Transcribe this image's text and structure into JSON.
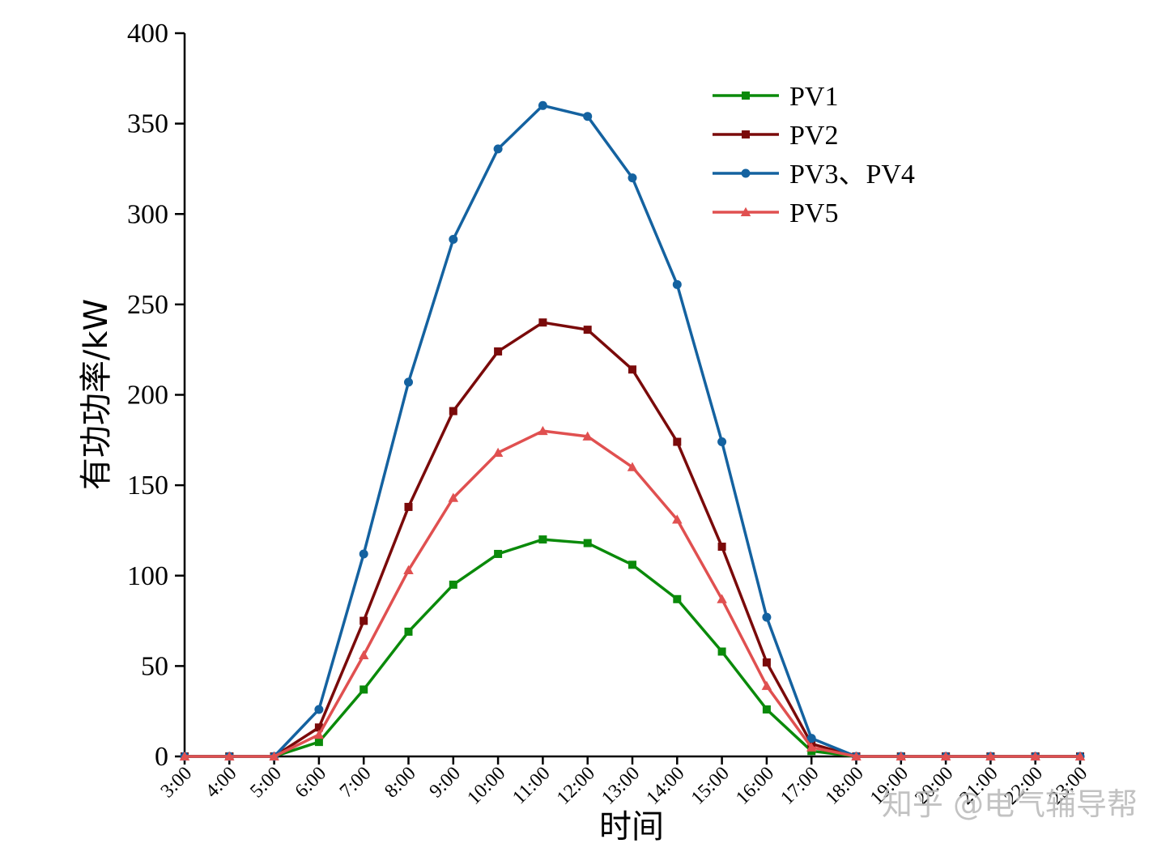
{
  "chart_data": {
    "type": "line",
    "title": "",
    "xlabel": "时间",
    "ylabel": "有功功率/kW",
    "ylim": [
      0,
      400
    ],
    "yticks": [
      0,
      50,
      100,
      150,
      200,
      250,
      300,
      350,
      400
    ],
    "categories": [
      "3:00",
      "4:00",
      "5:00",
      "6:00",
      "7:00",
      "8:00",
      "9:00",
      "10:00",
      "11:00",
      "12:00",
      "13:00",
      "14:00",
      "15:00",
      "16:00",
      "17:00",
      "18:00",
      "19:00",
      "20:00",
      "21:00",
      "22:00",
      "23:00"
    ],
    "grid": false,
    "legend_position": "top-right",
    "series": [
      {
        "name": "PV1",
        "color": "#0a8a0a",
        "marker": "square",
        "values": [
          0,
          0,
          0,
          8,
          37,
          69,
          95,
          112,
          120,
          118,
          106,
          87,
          58,
          26,
          3,
          0,
          0,
          0,
          0,
          0,
          0
        ]
      },
      {
        "name": "PV2",
        "color": "#7a0a0a",
        "marker": "square",
        "values": [
          0,
          0,
          0,
          16,
          75,
          138,
          191,
          224,
          240,
          236,
          214,
          174,
          116,
          52,
          7,
          0,
          0,
          0,
          0,
          0,
          0
        ]
      },
      {
        "name": "PV3、PV4",
        "color": "#1462a0",
        "marker": "circle",
        "values": [
          0,
          0,
          0,
          26,
          112,
          207,
          286,
          336,
          360,
          354,
          320,
          261,
          174,
          77,
          10,
          0,
          0,
          0,
          0,
          0,
          0
        ]
      },
      {
        "name": "PV5",
        "color": "#e05050",
        "marker": "triangle",
        "values": [
          0,
          0,
          0,
          12,
          56,
          103,
          143,
          168,
          180,
          177,
          160,
          131,
          87,
          39,
          5,
          0,
          0,
          0,
          0,
          0,
          0
        ]
      }
    ]
  },
  "watermark": "知乎 @电气辅导帮"
}
